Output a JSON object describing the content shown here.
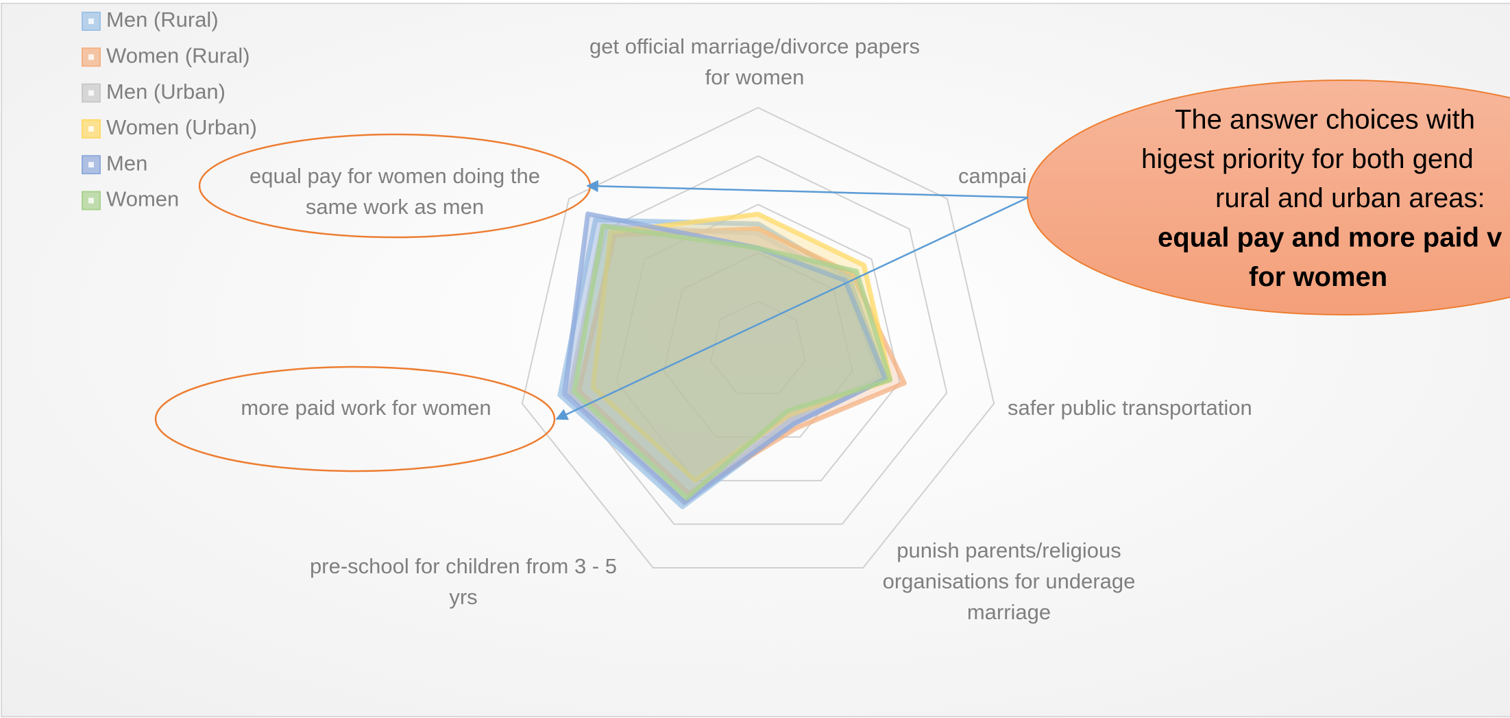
{
  "chart_data": {
    "type": "radar",
    "categories": [
      [
        "get official marriage/divorce papers",
        "for women"
      ],
      [
        "campai"
      ],
      [
        "safer public transportation"
      ],
      [
        "punish parents/religious",
        "organisations for underage",
        "marriage"
      ],
      [
        "pre-school for children from 3 - 5",
        "yrs"
      ],
      [
        "more paid work for women"
      ],
      [
        "equal pay for women doing the",
        "same work as men"
      ]
    ],
    "series": [
      {
        "name": "Men (Rural)",
        "color": "#9dc3e6",
        "values": [
          2.6,
          2.4,
          2.7,
          1.7,
          3.6,
          4.2,
          4.3
        ]
      },
      {
        "name": "Women (Rural)",
        "color": "#f4b183",
        "values": [
          2.5,
          2.5,
          3.1,
          1.8,
          3.3,
          3.8,
          3.8
        ]
      },
      {
        "name": "Men (Urban)",
        "color": "#c9c9c9",
        "values": [
          2.4,
          2.3,
          2.6,
          1.6,
          3.5,
          4.0,
          4.1
        ]
      },
      {
        "name": "Women (Urban)",
        "color": "#ffd966",
        "values": [
          2.8,
          2.8,
          2.8,
          1.5,
          3.0,
          3.5,
          3.9
        ]
      },
      {
        "name": "Men",
        "color": "#8faadc",
        "values": [
          2.1,
          2.3,
          2.7,
          1.7,
          3.5,
          4.1,
          4.5
        ]
      },
      {
        "name": "Women",
        "color": "#a9d18e",
        "values": [
          2.1,
          2.6,
          2.8,
          1.4,
          3.4,
          3.9,
          4.1
        ]
      }
    ],
    "ylim": [
      0,
      5
    ],
    "yticks": [
      0,
      1,
      2,
      3,
      4,
      5
    ],
    "grid": true,
    "legend": "top-left",
    "annotation": [
      "The answer choices with",
      "higest priority for both gend",
      "rural and urban areas:",
      "equal pay and more paid v",
      "for women"
    ]
  }
}
